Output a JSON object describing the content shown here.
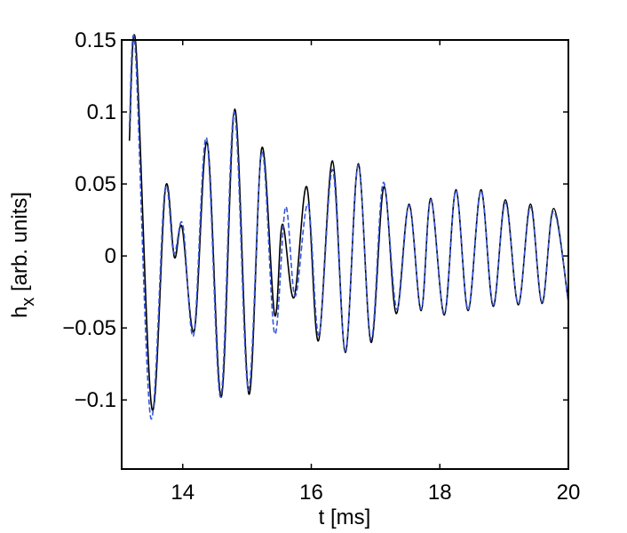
{
  "chart_data": {
    "type": "line",
    "xlabel": "t [ms]",
    "ylabel": {
      "base": "h",
      "subscript": "x",
      "rest": " [arb. units]"
    },
    "xlim": [
      13.05,
      20
    ],
    "ylim": [
      -0.148,
      0.15
    ],
    "xticks": [
      14,
      16,
      18,
      20
    ],
    "yticks": [
      {
        "value": -0.1,
        "label": "−0.1"
      },
      {
        "value": -0.05,
        "label": "−0.05"
      },
      0,
      0.05,
      0.1,
      0.15
    ],
    "series": [
      {
        "color": "#000000",
        "dash": false,
        "x": [
          13.17,
          13.27,
          13.52,
          13.73,
          13.87,
          13.99,
          14.18,
          14.38,
          14.6,
          14.81,
          15.03,
          15.23,
          15.43,
          15.55,
          15.73,
          15.93,
          16.11,
          16.33,
          16.53,
          16.73,
          16.93,
          17.13,
          17.32,
          17.52,
          17.71,
          17.86,
          18.07,
          18.25,
          18.44,
          18.64,
          18.83,
          19.02,
          19.22,
          19.41,
          19.59,
          19.77,
          20.0
        ],
        "values": [
          0.08,
          0.147,
          -0.106,
          0.047,
          -0.001,
          0.02,
          -0.052,
          0.079,
          -0.098,
          0.102,
          -0.096,
          0.075,
          -0.041,
          0.022,
          -0.029,
          0.048,
          -0.059,
          0.066,
          -0.067,
          0.064,
          -0.06,
          0.048,
          -0.04,
          0.036,
          -0.038,
          0.04,
          -0.041,
          0.046,
          -0.038,
          0.046,
          -0.035,
          0.039,
          -0.034,
          0.036,
          -0.033,
          0.033,
          -0.032
        ]
      },
      {
        "color": "#3355dd",
        "dash": true,
        "x": [
          13.17,
          13.26,
          13.5,
          13.72,
          13.86,
          14.0,
          14.17,
          14.37,
          14.59,
          14.8,
          15.02,
          15.23,
          15.43,
          15.6,
          15.75,
          15.95,
          16.12,
          16.33,
          16.53,
          16.73,
          16.93,
          17.12,
          17.33,
          17.52,
          17.71,
          17.86,
          18.07,
          18.25,
          18.44,
          18.64,
          18.83,
          19.02,
          19.22,
          19.41,
          19.59,
          19.77,
          20.0
        ],
        "values": [
          0.09,
          0.145,
          -0.112,
          0.045,
          0.002,
          0.022,
          -0.055,
          0.082,
          -0.098,
          0.1,
          -0.093,
          0.072,
          -0.054,
          0.034,
          -0.028,
          0.036,
          -0.055,
          0.06,
          -0.066,
          0.063,
          -0.058,
          0.051,
          -0.037,
          0.035,
          -0.037,
          0.039,
          -0.04,
          0.045,
          -0.037,
          0.045,
          -0.034,
          0.037,
          -0.033,
          0.034,
          -0.032,
          0.031,
          -0.031
        ]
      }
    ]
  }
}
